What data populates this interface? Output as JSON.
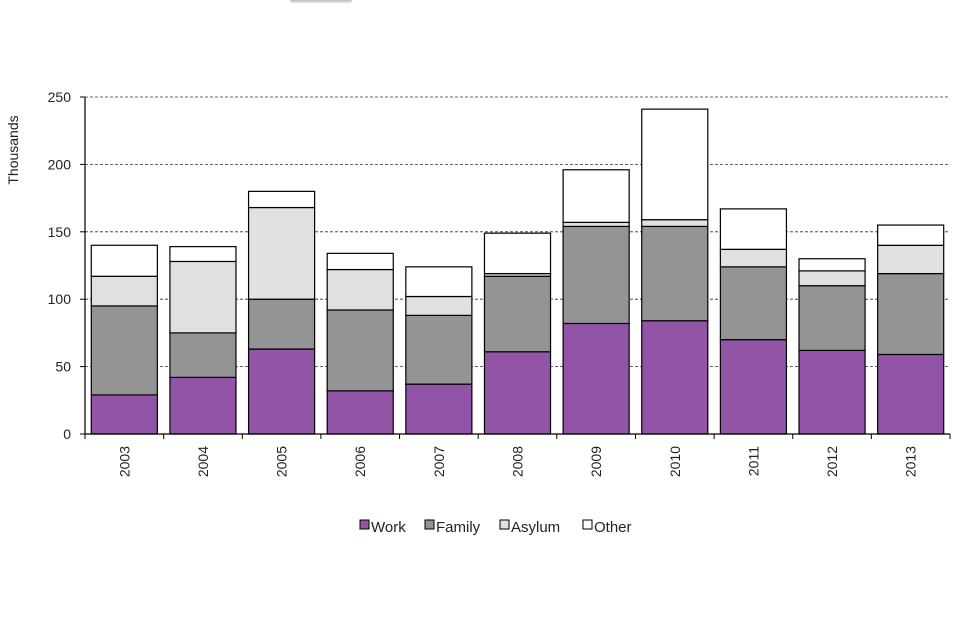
{
  "chart_data": {
    "type": "bar",
    "stacked": true,
    "title": "",
    "xlabel": "",
    "ylabel": "Thousands",
    "ylim": [
      0,
      250
    ],
    "yticks": [
      0,
      50,
      100,
      150,
      200,
      250
    ],
    "grid": "horizontal dashed",
    "legend_position": "bottom",
    "categories": [
      "2003",
      "2004",
      "2005",
      "2006",
      "2007",
      "2008",
      "2009",
      "2010",
      "2011",
      "2012",
      "2013"
    ],
    "series": [
      {
        "name": "Work",
        "color": "#9154a6",
        "values": [
          29,
          42,
          63,
          32,
          37,
          61,
          82,
          84,
          70,
          62,
          59
        ]
      },
      {
        "name": "Family",
        "color": "#949494",
        "values": [
          66,
          33,
          37,
          60,
          51,
          56,
          72,
          70,
          54,
          48,
          60
        ]
      },
      {
        "name": "Asylum",
        "color": "#e0e0e0",
        "values": [
          22,
          53,
          68,
          30,
          14,
          2,
          3,
          5,
          13,
          11,
          21
        ]
      },
      {
        "name": "Other",
        "color": "#ffffff",
        "values": [
          23,
          11,
          12,
          12,
          22,
          30,
          39,
          82,
          30,
          9,
          15
        ]
      }
    ]
  }
}
